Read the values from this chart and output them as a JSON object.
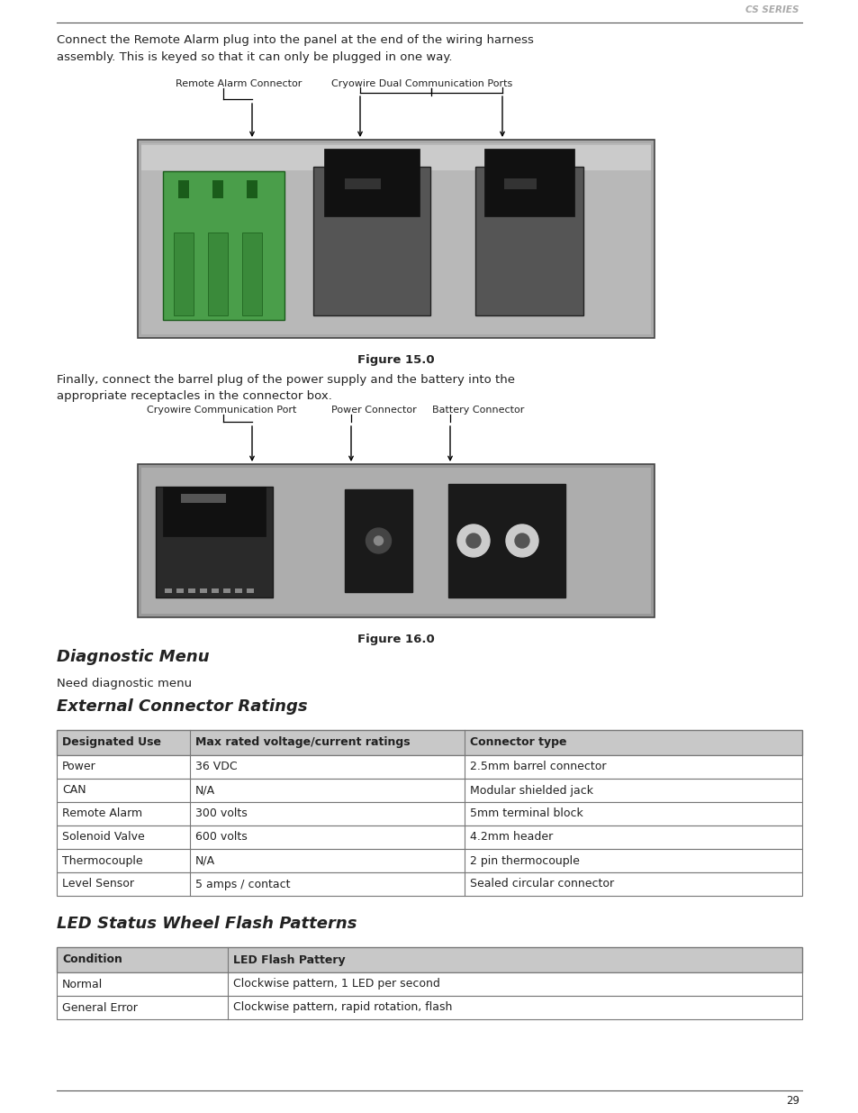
{
  "page_bg": "#ffffff",
  "header_text": "CS SERIES",
  "header_color": "#aaaaaa",
  "page_number": "29",
  "top_line_color": "#555555",
  "bottom_line_color": "#555555",
  "para1": "Connect the Remote Alarm plug into the panel at the end of the wiring harness\nassembly. This is keyed so that it can only be plugged in one way.",
  "fig15_caption": "Figure 15.0",
  "fig15_label1": "Remote Alarm Connector",
  "fig15_label2": "Cryowire Dual Communication Ports",
  "para2": "Finally, connect the barrel plug of the power supply and the battery into the\nappropriate receptacles in the connector box.",
  "fig16_caption": "Figure 16.0",
  "fig16_label1": "Cryowire Communication Port",
  "fig16_label2": "Power Connector",
  "fig16_label3": "Battery Connector",
  "section1_title": "Diagnostic Menu",
  "section1_body": "Need diagnostic menu",
  "section2_title": "External Connector Ratings",
  "table1_headers": [
    "Designated Use",
    "Max rated voltage/current ratings",
    "Connector type"
  ],
  "table1_rows": [
    [
      "Power",
      "36 VDC",
      "2.5mm barrel connector"
    ],
    [
      "CAN",
      "N/A",
      "Modular shielded jack"
    ],
    [
      "Remote Alarm",
      "300 volts",
      "5mm terminal block"
    ],
    [
      "Solenoid Valve",
      "600 volts",
      "4.2mm header"
    ],
    [
      "Thermocouple",
      "N/A",
      "2 pin thermocouple"
    ],
    [
      "Level Sensor",
      "5 amps / contact",
      "Sealed circular connector"
    ]
  ],
  "table1_header_bg": "#c8c8c8",
  "table1_border": "#777777",
  "section3_title": "LED Status Wheel Flash Patterns",
  "table2_headers": [
    "Condition",
    "LED Flash Pattery"
  ],
  "table2_rows": [
    [
      "Normal",
      "Clockwise pattern, 1 LED per second"
    ],
    [
      "General Error",
      "Clockwise pattern, rapid rotation, flash"
    ]
  ],
  "table2_header_bg": "#c8c8c8",
  "table2_border": "#777777",
  "text_color": "#222222",
  "body_fontsize": 9.5,
  "section_title_fontsize": 13,
  "header_fontsize": 7.5,
  "caption_fontsize": 9.5,
  "label_fontsize": 8.0,
  "table_fontsize": 9.0
}
